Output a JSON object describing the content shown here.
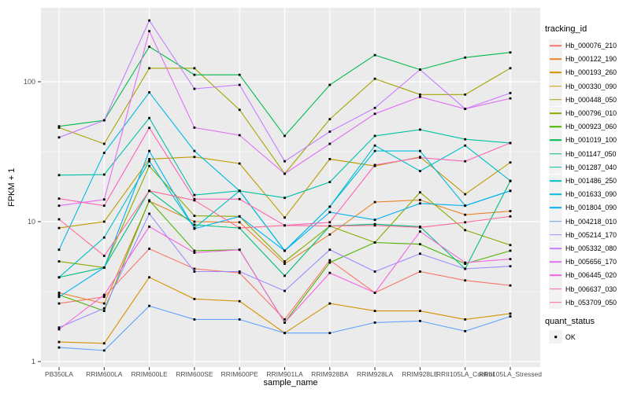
{
  "chart_data": {
    "type": "line",
    "title": "",
    "xlabel": "sample_name",
    "ylabel": "FPKM + 1",
    "yscale": "log10",
    "yticks": [
      1,
      10,
      100
    ],
    "ylim": [
      1,
      340
    ],
    "grid": "on",
    "panel_background": "#EBEBEB",
    "gridline_color": "#FFFFFF",
    "marker": {
      "shape": "square",
      "color": "#000000"
    },
    "legend_position": "right",
    "categories": [
      "PB350LA",
      "RRIM600LA",
      "RRIM600LE",
      "RRIM600SE",
      "RRIM600PE",
      "RRIM901LA",
      "RRIM928BA",
      "RRIM928LA",
      "RRIM928LE",
      "RRII105LA_Control",
      "RRII105LA_Stressed"
    ],
    "series": [
      {
        "name": "Hb_000076_210",
        "color": "#F8766D",
        "values": [
          2.6,
          2.9,
          6.4,
          4.6,
          4.3,
          2.0,
          5.3,
          3.1,
          4.4,
          3.8,
          3.5
        ]
      },
      {
        "name": "Hb_000122_190",
        "color": "#E88526",
        "values": [
          3.1,
          2.6,
          14.0,
          10.0,
          9.9,
          5.0,
          8.1,
          13.8,
          14.3,
          11.2,
          11.9
        ]
      },
      {
        "name": "Hb_000193_260",
        "color": "#D39200",
        "values": [
          1.38,
          1.35,
          4.0,
          2.8,
          2.7,
          1.6,
          2.6,
          2.3,
          2.3,
          2.0,
          2.2
        ]
      },
      {
        "name": "Hb_000330_090",
        "color": "#BF9B00",
        "values": [
          9.0,
          10.0,
          28.0,
          29.0,
          26.0,
          10.7,
          28.0,
          25.0,
          29.0,
          15.7,
          26.5
        ]
      },
      {
        "name": "Hb_000448_050",
        "color": "#A6A400",
        "values": [
          47.0,
          36.0,
          125.0,
          125.0,
          63.0,
          22.0,
          54.0,
          105.0,
          81.0,
          81.0,
          125.0
        ]
      },
      {
        "name": "Hb_000796_010",
        "color": "#86AC00",
        "values": [
          5.2,
          4.7,
          25.0,
          11.0,
          10.9,
          5.2,
          9.3,
          7.1,
          16.2,
          8.7,
          6.8
        ]
      },
      {
        "name": "Hb_000923_060",
        "color": "#4FB400",
        "values": [
          3.0,
          2.3,
          14.2,
          6.2,
          6.3,
          1.9,
          5.1,
          7.1,
          6.9,
          5.0,
          6.2
        ]
      },
      {
        "name": "Hb_001019_100",
        "color": "#00BB4E",
        "values": [
          48.0,
          53.0,
          178.0,
          112.0,
          112.0,
          41.0,
          95.0,
          155.0,
          122.0,
          149.0,
          162.0
        ]
      },
      {
        "name": "Hb_001147_050",
        "color": "#00BF7D",
        "values": [
          4.0,
          4.7,
          16.6,
          9.5,
          9.0,
          4.1,
          9.3,
          9.6,
          9.2,
          4.6,
          19.5
        ]
      },
      {
        "name": "Hb_001287_040",
        "color": "#00C1A7",
        "values": [
          21.5,
          21.7,
          55.0,
          15.5,
          16.6,
          14.8,
          19.2,
          41.0,
          45.5,
          38.8,
          36.5
        ]
      },
      {
        "name": "Hb_001486_250",
        "color": "#00BFC4",
        "values": [
          4.0,
          7.7,
          27.0,
          9.0,
          16.6,
          6.2,
          12.8,
          35.0,
          23.0,
          35.0,
          19.6
        ]
      },
      {
        "name": "Hb_001633_090",
        "color": "#00BAE0",
        "values": [
          6.3,
          31.0,
          84.0,
          32.0,
          16.6,
          6.2,
          12.8,
          32.0,
          32.0,
          13.0,
          16.6
        ]
      },
      {
        "name": "Hb_001804_090",
        "color": "#00B0F6",
        "values": [
          2.9,
          4.7,
          32.0,
          8.9,
          10.9,
          6.2,
          11.7,
          10.3,
          13.5,
          13.0,
          16.6
        ]
      },
      {
        "name": "Hb_004218_010",
        "color": "#61A2FF",
        "values": [
          1.26,
          1.2,
          2.5,
          2.0,
          2.0,
          1.6,
          1.6,
          1.9,
          1.95,
          1.65,
          2.1
        ]
      },
      {
        "name": "Hb_005214_170",
        "color": "#9C8DFF",
        "values": [
          1.75,
          2.4,
          11.4,
          4.4,
          4.4,
          3.2,
          6.3,
          4.4,
          5.9,
          4.6,
          4.8
        ]
      },
      {
        "name": "Hb_005332_080",
        "color": "#C77CFF",
        "values": [
          40.0,
          53.0,
          274.0,
          89.0,
          95.0,
          27.0,
          44.0,
          65.0,
          122.0,
          64.0,
          83.0
        ]
      },
      {
        "name": "Hb_005656_170",
        "color": "#E36EF6",
        "values": [
          13.0,
          14.4,
          230.0,
          47.0,
          41.5,
          22.0,
          36.0,
          59.0,
          78.0,
          64.0,
          76.0
        ]
      },
      {
        "name": "Hb_006445_020",
        "color": "#F564E0",
        "values": [
          1.7,
          3.0,
          9.2,
          6.0,
          6.3,
          1.9,
          4.3,
          3.1,
          8.5,
          5.1,
          5.4
        ]
      },
      {
        "name": "Hb_006637_030",
        "color": "#FF62B6",
        "values": [
          14.6,
          13.0,
          46.8,
          14.5,
          14.5,
          9.4,
          9.9,
          25.4,
          28.7,
          27.0,
          36.5
        ]
      },
      {
        "name": "Hb_053709_050",
        "color": "#FF6A98",
        "values": [
          10.4,
          5.7,
          16.6,
          14.2,
          9.0,
          9.4,
          9.3,
          9.4,
          9.1,
          9.9,
          10.9
        ]
      }
    ]
  },
  "legend": {
    "tracking_title": "tracking_id",
    "quant_title": "quant_status",
    "quant_items": [
      {
        "label": "OK"
      }
    ]
  }
}
